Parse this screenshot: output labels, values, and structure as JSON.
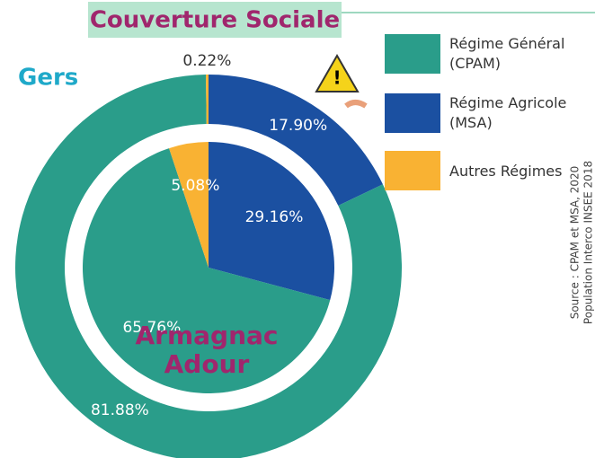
{
  "chart_data": {
    "type": "nested-donut",
    "title": "Couverture Sociale",
    "categories": [
      "Régime Général (CPAM)",
      "Régime Agricole (MSA)",
      "Autres Régimes"
    ],
    "colors": [
      "#2a9d8a",
      "#1b50a1",
      "#f9b233"
    ],
    "series": [
      {
        "name": "Gers",
        "values": [
          81.88,
          17.9,
          0.22
        ],
        "value_labels": [
          "81.88%",
          "17.90%",
          "0.22%"
        ]
      },
      {
        "name": "Armagnac Adour",
        "values": [
          65.76,
          29.16,
          5.08
        ],
        "value_labels": [
          "65.76%",
          "29.16%",
          "5.08%"
        ]
      }
    ],
    "source": [
      "Source : CPAM et MSA, 2020",
      "Population Interco INSEE 2018"
    ]
  }
}
